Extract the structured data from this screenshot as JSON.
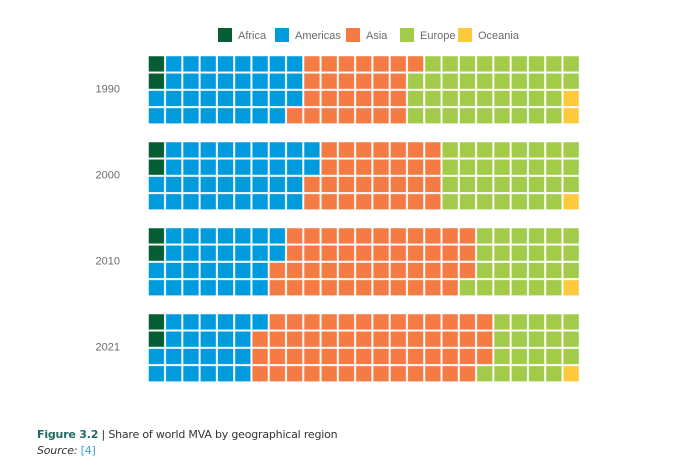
{
  "chart_data": {
    "type": "waffle",
    "title": "Share of world MVA by geographical region",
    "grid": {
      "rows": 4,
      "columns": 25,
      "unit": "percent per cell",
      "fill_order": "column-major, top-to-bottom"
    },
    "legend": {
      "placement": "top-center",
      "entries": [
        "Africa",
        "Americas",
        "Asia",
        "Europe",
        "Oceania"
      ]
    },
    "colors": {
      "Africa": "#075e34",
      "Americas": "#009bdd",
      "Asia": "#f47b44",
      "Europe": "#a2cb49",
      "Oceania": "#ffc93e"
    },
    "categories": [
      "1990",
      "2000",
      "2010",
      "2021"
    ],
    "series": [
      {
        "name": "Africa",
        "values": [
          2,
          2,
          2,
          2
        ]
      },
      {
        "name": "Americas",
        "values": [
          33,
          36,
          28,
          23
        ]
      },
      {
        "name": "Asia",
        "values": [
          26,
          30,
          45,
          54
        ]
      },
      {
        "name": "Europe",
        "values": [
          37,
          31,
          24,
          20
        ]
      },
      {
        "name": "Oceania",
        "values": [
          2,
          1,
          1,
          1
        ]
      }
    ]
  },
  "caption": {
    "figure_label": "Figure 3.2",
    "separator": "|",
    "text": "Share of world MVA by geographical region",
    "source_label": "Source:",
    "source_ref": "[4]"
  }
}
